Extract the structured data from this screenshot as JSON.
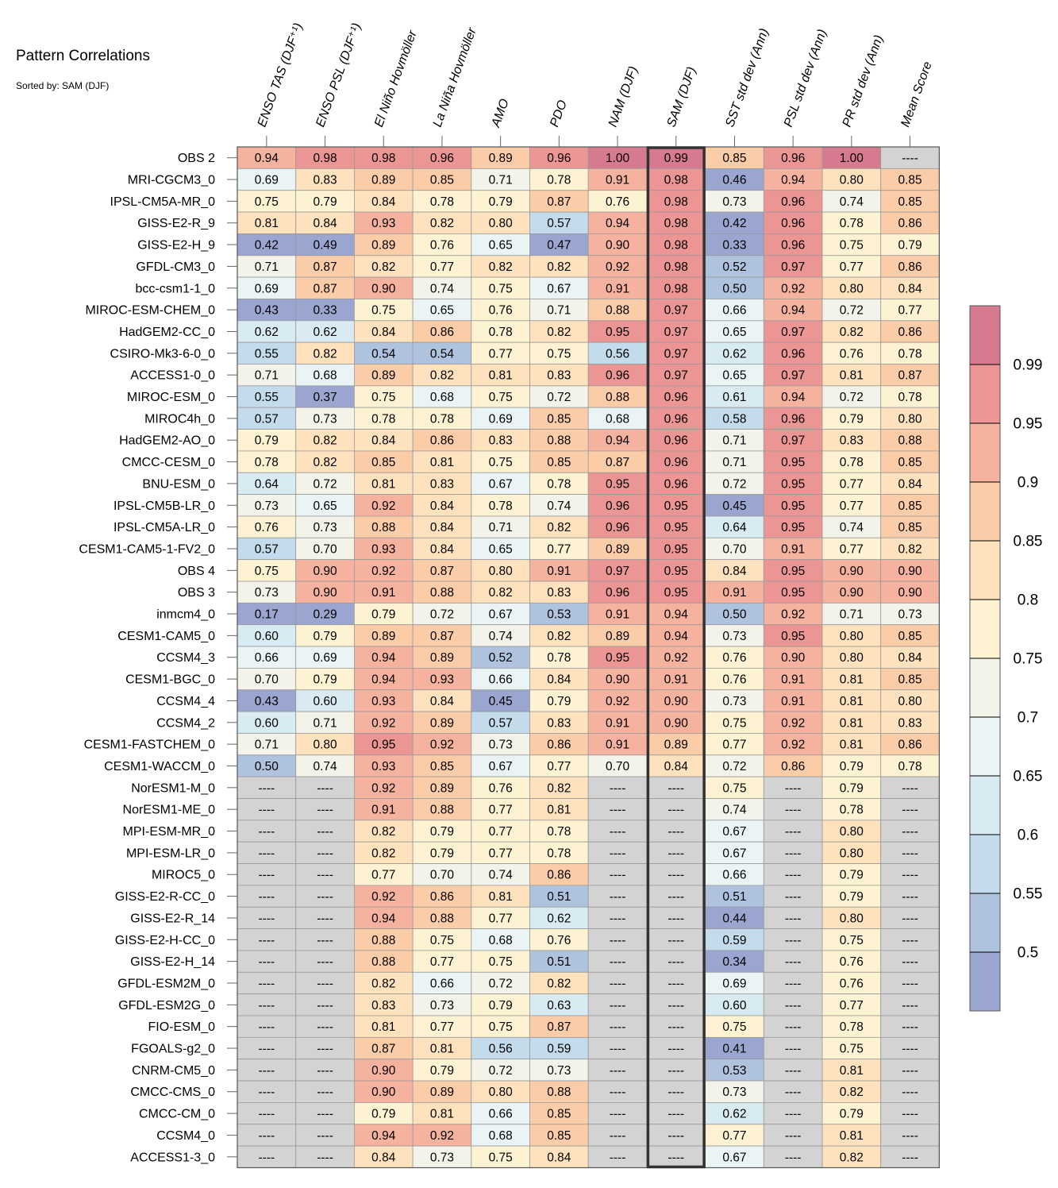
{
  "title": "Pattern Correlations",
  "subtitle": "Sorted by: SAM (DJF)",
  "chart_data": {
    "type": "heatmap",
    "title": "Pattern Correlations",
    "sorted_by": "SAM (DJF)",
    "highlight_column": "SAM (DJF)",
    "missing_label": "----",
    "columns": [
      "ENSO TAS (DJF⁺¹)",
      "ENSO PSL (DJF⁺¹)",
      "El Niño Hovmöller",
      "La Niña Hovmöller",
      "AMO",
      "PDO",
      "NAM (DJF)",
      "SAM (DJF)",
      "SST std dev (Ann)",
      "PSL std dev (Ann)",
      "PR std dev (Ann)",
      "Mean Score"
    ],
    "rows": [
      "OBS 2",
      "MRI-CGCM3_0",
      "IPSL-CM5A-MR_0",
      "GISS-E2-R_9",
      "GISS-E2-H_9",
      "GFDL-CM3_0",
      "bcc-csm1-1_0",
      "MIROC-ESM-CHEM_0",
      "HadGEM2-CC_0",
      "CSIRO-Mk3-6-0_0",
      "ACCESS1-0_0",
      "MIROC-ESM_0",
      "MIROC4h_0",
      "HadGEM2-AO_0",
      "CMCC-CESM_0",
      "BNU-ESM_0",
      "IPSL-CM5B-LR_0",
      "IPSL-CM5A-LR_0",
      "CESM1-CAM5-1-FV2_0",
      "OBS 4",
      "OBS 3",
      "inmcm4_0",
      "CESM1-CAM5_0",
      "CCSM4_3",
      "CESM1-BGC_0",
      "CCSM4_4",
      "CCSM4_2",
      "CESM1-FASTCHEM_0",
      "CESM1-WACCM_0",
      "NorESM1-M_0",
      "NorESM1-ME_0",
      "MPI-ESM-MR_0",
      "MPI-ESM-LR_0",
      "MIROC5_0",
      "GISS-E2-R-CC_0",
      "GISS-E2-R_14",
      "GISS-E2-H-CC_0",
      "GISS-E2-H_14",
      "GFDL-ESM2M_0",
      "GFDL-ESM2G_0",
      "FIO-ESM_0",
      "FGOALS-g2_0",
      "CNRM-CM5_0",
      "CMCC-CMS_0",
      "CMCC-CM_0",
      "CCSM4_0",
      "ACCESS1-3_0"
    ],
    "values": [
      [
        0.94,
        0.98,
        0.98,
        0.96,
        0.89,
        0.96,
        1.0,
        0.99,
        0.85,
        0.96,
        1.0,
        null
      ],
      [
        0.69,
        0.83,
        0.89,
        0.85,
        0.71,
        0.78,
        0.91,
        0.98,
        0.46,
        0.94,
        0.8,
        0.85
      ],
      [
        0.75,
        0.79,
        0.84,
        0.78,
        0.79,
        0.87,
        0.76,
        0.98,
        0.73,
        0.96,
        0.74,
        0.85
      ],
      [
        0.81,
        0.84,
        0.93,
        0.82,
        0.8,
        0.57,
        0.94,
        0.98,
        0.42,
        0.96,
        0.78,
        0.86
      ],
      [
        0.42,
        0.49,
        0.89,
        0.76,
        0.65,
        0.47,
        0.9,
        0.98,
        0.33,
        0.96,
        0.75,
        0.79
      ],
      [
        0.71,
        0.87,
        0.82,
        0.77,
        0.82,
        0.82,
        0.92,
        0.98,
        0.52,
        0.97,
        0.77,
        0.86
      ],
      [
        0.69,
        0.87,
        0.9,
        0.74,
        0.75,
        0.67,
        0.91,
        0.98,
        0.5,
        0.92,
        0.8,
        0.84
      ],
      [
        0.43,
        0.33,
        0.75,
        0.65,
        0.76,
        0.71,
        0.88,
        0.97,
        0.66,
        0.94,
        0.72,
        0.77
      ],
      [
        0.62,
        0.62,
        0.84,
        0.86,
        0.78,
        0.82,
        0.95,
        0.97,
        0.65,
        0.97,
        0.82,
        0.86
      ],
      [
        0.55,
        0.82,
        0.54,
        0.54,
        0.77,
        0.75,
        0.56,
        0.97,
        0.62,
        0.96,
        0.76,
        0.78
      ],
      [
        0.71,
        0.68,
        0.89,
        0.82,
        0.81,
        0.83,
        0.96,
        0.97,
        0.65,
        0.97,
        0.81,
        0.87
      ],
      [
        0.55,
        0.37,
        0.75,
        0.68,
        0.75,
        0.72,
        0.88,
        0.96,
        0.61,
        0.94,
        0.72,
        0.78
      ],
      [
        0.57,
        0.73,
        0.78,
        0.78,
        0.69,
        0.85,
        0.68,
        0.96,
        0.58,
        0.96,
        0.79,
        0.8
      ],
      [
        0.79,
        0.82,
        0.84,
        0.86,
        0.83,
        0.88,
        0.94,
        0.96,
        0.71,
        0.97,
        0.83,
        0.88
      ],
      [
        0.78,
        0.82,
        0.85,
        0.81,
        0.75,
        0.85,
        0.87,
        0.96,
        0.71,
        0.95,
        0.78,
        0.85
      ],
      [
        0.64,
        0.72,
        0.81,
        0.83,
        0.67,
        0.78,
        0.95,
        0.96,
        0.72,
        0.95,
        0.77,
        0.84
      ],
      [
        0.73,
        0.65,
        0.92,
        0.84,
        0.78,
        0.74,
        0.96,
        0.95,
        0.45,
        0.95,
        0.77,
        0.85
      ],
      [
        0.76,
        0.73,
        0.88,
        0.84,
        0.71,
        0.82,
        0.96,
        0.95,
        0.64,
        0.95,
        0.74,
        0.85
      ],
      [
        0.57,
        0.7,
        0.93,
        0.84,
        0.65,
        0.77,
        0.89,
        0.95,
        0.7,
        0.91,
        0.77,
        0.82
      ],
      [
        0.75,
        0.9,
        0.92,
        0.87,
        0.8,
        0.91,
        0.97,
        0.95,
        0.84,
        0.95,
        0.9,
        0.9
      ],
      [
        0.73,
        0.9,
        0.91,
        0.88,
        0.82,
        0.83,
        0.96,
        0.95,
        0.91,
        0.95,
        0.9,
        0.9
      ],
      [
        0.17,
        0.29,
        0.79,
        0.72,
        0.67,
        0.53,
        0.91,
        0.94,
        0.5,
        0.92,
        0.71,
        0.73
      ],
      [
        0.6,
        0.79,
        0.89,
        0.87,
        0.74,
        0.82,
        0.89,
        0.94,
        0.73,
        0.95,
        0.8,
        0.85
      ],
      [
        0.66,
        0.69,
        0.94,
        0.89,
        0.52,
        0.78,
        0.95,
        0.92,
        0.76,
        0.9,
        0.8,
        0.84
      ],
      [
        0.7,
        0.79,
        0.94,
        0.93,
        0.66,
        0.84,
        0.9,
        0.91,
        0.76,
        0.91,
        0.81,
        0.85
      ],
      [
        0.43,
        0.6,
        0.93,
        0.84,
        0.45,
        0.79,
        0.92,
        0.9,
        0.73,
        0.91,
        0.81,
        0.8
      ],
      [
        0.6,
        0.71,
        0.92,
        0.89,
        0.57,
        0.83,
        0.91,
        0.9,
        0.75,
        0.92,
        0.81,
        0.83
      ],
      [
        0.71,
        0.8,
        0.95,
        0.92,
        0.73,
        0.86,
        0.91,
        0.89,
        0.77,
        0.92,
        0.81,
        0.86
      ],
      [
        0.5,
        0.74,
        0.93,
        0.85,
        0.67,
        0.77,
        0.7,
        0.84,
        0.72,
        0.86,
        0.79,
        0.78
      ],
      [
        null,
        null,
        0.92,
        0.89,
        0.76,
        0.82,
        null,
        null,
        0.75,
        null,
        0.79,
        null
      ],
      [
        null,
        null,
        0.91,
        0.88,
        0.77,
        0.81,
        null,
        null,
        0.74,
        null,
        0.78,
        null
      ],
      [
        null,
        null,
        0.82,
        0.79,
        0.77,
        0.78,
        null,
        null,
        0.67,
        null,
        0.8,
        null
      ],
      [
        null,
        null,
        0.82,
        0.79,
        0.77,
        0.78,
        null,
        null,
        0.67,
        null,
        0.8,
        null
      ],
      [
        null,
        null,
        0.77,
        0.7,
        0.74,
        0.86,
        null,
        null,
        0.66,
        null,
        0.79,
        null
      ],
      [
        null,
        null,
        0.92,
        0.86,
        0.81,
        0.51,
        null,
        null,
        0.51,
        null,
        0.79,
        null
      ],
      [
        null,
        null,
        0.94,
        0.88,
        0.77,
        0.62,
        null,
        null,
        0.44,
        null,
        0.8,
        null
      ],
      [
        null,
        null,
        0.88,
        0.75,
        0.68,
        0.76,
        null,
        null,
        0.59,
        null,
        0.75,
        null
      ],
      [
        null,
        null,
        0.88,
        0.77,
        0.75,
        0.51,
        null,
        null,
        0.34,
        null,
        0.76,
        null
      ],
      [
        null,
        null,
        0.82,
        0.66,
        0.72,
        0.82,
        null,
        null,
        0.69,
        null,
        0.76,
        null
      ],
      [
        null,
        null,
        0.83,
        0.73,
        0.79,
        0.63,
        null,
        null,
        0.6,
        null,
        0.77,
        null
      ],
      [
        null,
        null,
        0.81,
        0.77,
        0.75,
        0.87,
        null,
        null,
        0.75,
        null,
        0.78,
        null
      ],
      [
        null,
        null,
        0.87,
        0.81,
        0.56,
        0.59,
        null,
        null,
        0.41,
        null,
        0.75,
        null
      ],
      [
        null,
        null,
        0.9,
        0.79,
        0.72,
        0.73,
        null,
        null,
        0.53,
        null,
        0.81,
        null
      ],
      [
        null,
        null,
        0.9,
        0.89,
        0.8,
        0.88,
        null,
        null,
        0.73,
        null,
        0.82,
        null
      ],
      [
        null,
        null,
        0.79,
        0.81,
        0.66,
        0.85,
        null,
        null,
        0.62,
        null,
        0.79,
        null
      ],
      [
        null,
        null,
        0.94,
        0.92,
        0.68,
        0.85,
        null,
        null,
        0.77,
        null,
        0.81,
        null
      ],
      [
        null,
        null,
        0.84,
        0.73,
        0.75,
        0.84,
        null,
        null,
        0.67,
        null,
        0.82,
        null
      ]
    ],
    "colorbar": {
      "ticks": [
        "0.99",
        "0.95",
        "0.9",
        "0.85",
        "0.8",
        "0.75",
        "0.7",
        "0.65",
        "0.6",
        "0.55",
        "0.5"
      ],
      "bounds": [
        0.5,
        0.55,
        0.6,
        0.65,
        0.7,
        0.75,
        0.8,
        0.85,
        0.9,
        0.95,
        0.99
      ],
      "colors": [
        "#9aa6cf",
        "#afc3df",
        "#c3dbea",
        "#d9ebf2",
        "#eaf4f5",
        "#f3f3ea",
        "#fdf3d2",
        "#fde2bd",
        "#fbcca8",
        "#f4b29f",
        "#eb9594",
        "#d67b8f"
      ],
      "missing_color": "#d3d3d3"
    }
  }
}
